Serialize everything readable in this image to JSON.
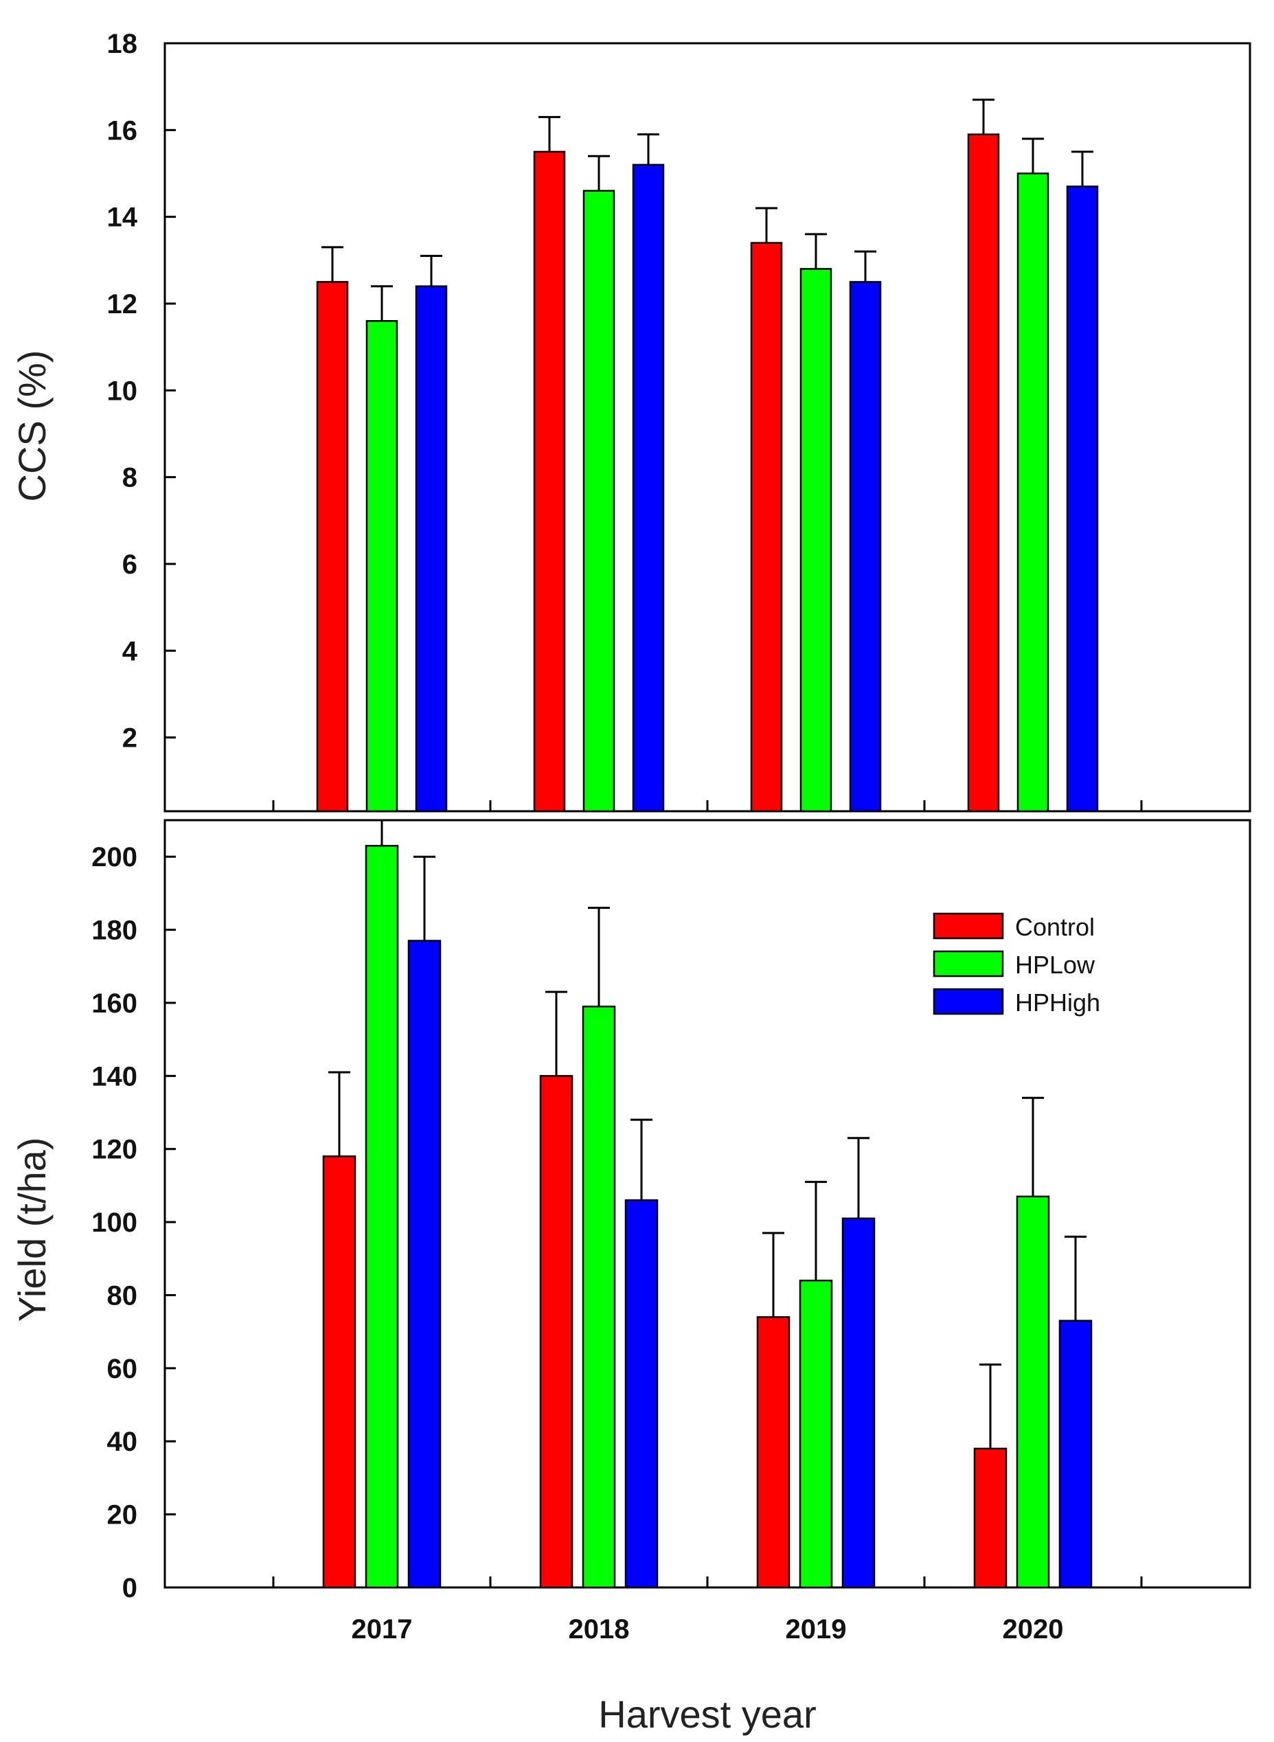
{
  "chart_data": [
    {
      "type": "bar",
      "ylabel": "CCS (%)",
      "xlabel": "",
      "ylim": [
        0.3,
        18
      ],
      "yticks": [
        2,
        4,
        6,
        8,
        10,
        12,
        14,
        16,
        18
      ],
      "categories": [
        "2017",
        "2018",
        "2019",
        "2020"
      ],
      "show_category_labels": false,
      "series": [
        {
          "name": "Control",
          "color": "#ff0000",
          "values": [
            12.5,
            15.5,
            13.4,
            15.9
          ],
          "errors": [
            0.8,
            0.8,
            0.8,
            0.8
          ]
        },
        {
          "name": "HPLow",
          "color": "#00ff00",
          "values": [
            11.6,
            14.6,
            12.8,
            15.0
          ],
          "errors": [
            0.8,
            0.8,
            0.8,
            0.8
          ]
        },
        {
          "name": "HPHigh",
          "color": "#0000ff",
          "values": [
            12.4,
            15.2,
            12.5,
            14.7
          ],
          "errors": [
            0.7,
            0.7,
            0.7,
            0.8
          ]
        }
      ]
    },
    {
      "type": "bar",
      "ylabel": "Yield (t/ha)",
      "xlabel": "Harvest year",
      "ylim": [
        0,
        210
      ],
      "yticks": [
        0,
        20,
        40,
        60,
        80,
        100,
        120,
        140,
        160,
        180,
        200
      ],
      "categories": [
        "2017",
        "2018",
        "2019",
        "2020"
      ],
      "show_category_labels": true,
      "legend": {
        "position": "top-right",
        "entries": [
          "Control",
          "HPLow",
          "HPHigh"
        ]
      },
      "series": [
        {
          "name": "Control",
          "color": "#ff0000",
          "values": [
            118,
            140,
            74,
            38
          ],
          "errors": [
            23,
            23,
            23,
            23
          ]
        },
        {
          "name": "HPLow",
          "color": "#00ff00",
          "values": [
            203,
            159,
            84,
            107
          ],
          "errors": [
            8,
            27,
            27,
            27
          ]
        },
        {
          "name": "HPHigh",
          "color": "#0000ff",
          "values": [
            177,
            106,
            101,
            73
          ],
          "errors": [
            23,
            22,
            22,
            23
          ]
        }
      ]
    }
  ]
}
